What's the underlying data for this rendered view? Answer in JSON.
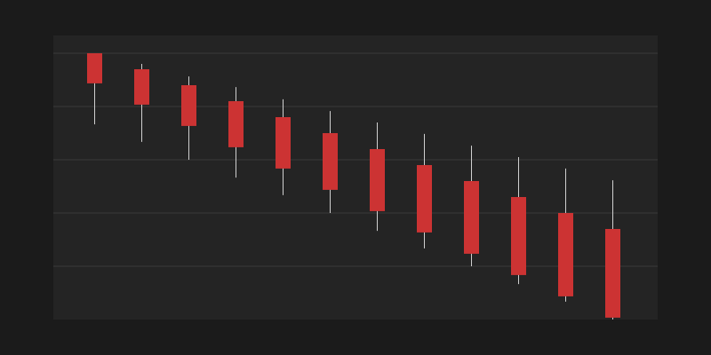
{
  "colors": {
    "page_background": "#1b1b1b",
    "plot_background": "#242424",
    "gridline": "#3a3a3a",
    "candle_down": "#cc3333",
    "wick": "#d0d0d0"
  },
  "chart_data": {
    "type": "candlestick",
    "title": "",
    "xlabel": "",
    "ylabel": "",
    "ylim": [
      0,
      100
    ],
    "gridlines_y": [
      20,
      40,
      60,
      80,
      100
    ],
    "grid": true,
    "legend": "none",
    "candles": [
      {
        "open": 100.0,
        "close": 88.7,
        "high": 100.0,
        "low": 73.3
      },
      {
        "open": 94.0,
        "close": 80.7,
        "high": 96.0,
        "low": 66.7
      },
      {
        "open": 88.0,
        "close": 72.7,
        "high": 91.3,
        "low": 60.0
      },
      {
        "open": 82.0,
        "close": 64.7,
        "high": 87.3,
        "low": 53.3
      },
      {
        "open": 76.0,
        "close": 56.7,
        "high": 82.7,
        "low": 46.7
      },
      {
        "open": 70.0,
        "close": 48.7,
        "high": 78.3,
        "low": 40.0
      },
      {
        "open": 64.0,
        "close": 40.7,
        "high": 74.0,
        "low": 33.3
      },
      {
        "open": 58.0,
        "close": 32.7,
        "high": 69.7,
        "low": 26.7
      },
      {
        "open": 52.0,
        "close": 24.7,
        "high": 65.3,
        "low": 20.0
      },
      {
        "open": 46.0,
        "close": 16.7,
        "high": 61.0,
        "low": 13.3
      },
      {
        "open": 40.0,
        "close": 8.7,
        "high": 56.7,
        "low": 6.7
      },
      {
        "open": 34.0,
        "close": 0.7,
        "high": 52.3,
        "low": 0.0
      }
    ]
  }
}
